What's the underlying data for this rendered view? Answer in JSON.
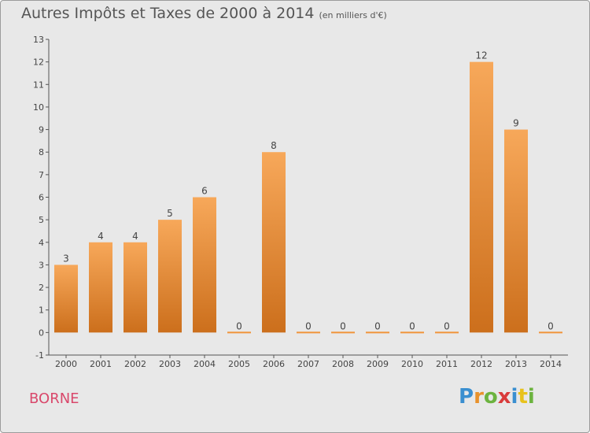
{
  "title": "Autres Impôts et Taxes de 2000 à 2014",
  "unit_note": "(en milliers d'€)",
  "commune": "BORNE",
  "logo": {
    "text": "Proxiti",
    "letters": [
      {
        "ch": "P",
        "color": "#3a8fd0"
      },
      {
        "ch": "r",
        "color": "#e8922c"
      },
      {
        "ch": "o",
        "color": "#6cb33f"
      },
      {
        "ch": "x",
        "color": "#d93b3b"
      },
      {
        "ch": "i",
        "color": "#3a8fd0"
      },
      {
        "ch": "t",
        "color": "#e8c21c"
      },
      {
        "ch": "i",
        "color": "#6cb33f"
      }
    ]
  },
  "chart_data": {
    "type": "bar",
    "title": "Autres Impôts et Taxes de 2000 à 2014",
    "categories": [
      "2000",
      "2001",
      "2002",
      "2003",
      "2004",
      "2005",
      "2006",
      "2007",
      "2008",
      "2009",
      "2010",
      "2011",
      "2012",
      "2013",
      "2014"
    ],
    "values": [
      3,
      4,
      4,
      5,
      6,
      0,
      8,
      0,
      0,
      0,
      0,
      0,
      12,
      9,
      0
    ],
    "data_labels": [
      "3",
      "4",
      "4",
      "5",
      "6",
      "0",
      "8",
      "0",
      "0",
      "0",
      "0",
      "0",
      "12",
      "9",
      "0"
    ],
    "ylim": [
      -1,
      13
    ],
    "yticks": [
      -1,
      0,
      1,
      2,
      3,
      4,
      5,
      6,
      7,
      8,
      9,
      10,
      11,
      12,
      13
    ],
    "grid": false,
    "bar_color": "#f0943a",
    "bar_color_dark": "#d0701e"
  }
}
